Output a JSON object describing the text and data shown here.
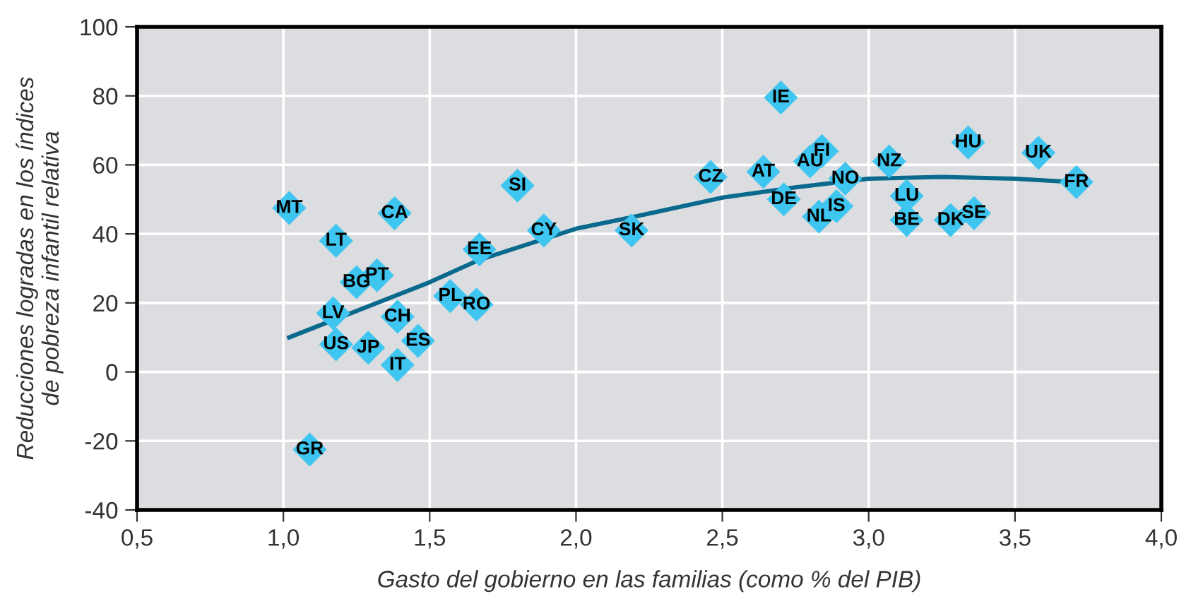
{
  "chart_data": {
    "type": "scatter",
    "xlabel": "Gasto del gobierno en las familias (como % del PIB)",
    "ylabel": "Reducciones logradas en los índices\nde pobreza infantil relativa",
    "series": [
      {
        "color": "#3fc6f0",
        "marker": "diamond",
        "x": [
          1.02,
          1.18,
          1.38,
          1.25,
          1.32,
          1.17,
          1.18,
          1.29,
          1.39,
          1.46,
          1.39,
          1.09,
          1.8,
          1.67,
          1.89,
          2.19,
          1.57,
          1.66,
          2.7,
          2.46,
          2.64,
          2.8,
          2.84,
          2.71,
          2.92,
          2.83,
          2.89,
          3.07,
          3.13,
          3.13,
          3.28,
          3.36,
          3.34,
          3.58,
          3.71
        ],
        "values": [
          47.5,
          38,
          46,
          26,
          28,
          17,
          8,
          7,
          16,
          9,
          2,
          -22.5,
          54,
          35.5,
          41,
          41,
          22,
          19.5,
          79.5,
          56.5,
          58,
          61,
          64,
          50,
          56,
          45,
          48,
          61,
          51,
          44,
          44,
          46,
          66.5,
          63.5,
          55
        ]
      },
      {
        "type": "line",
        "color": "#0a6a8e",
        "x": [
          1.02,
          1.2,
          1.5,
          1.67,
          2.0,
          2.2,
          2.5,
          2.75,
          3.0,
          3.25,
          3.5,
          3.7
        ],
        "values": [
          10,
          16,
          26,
          32.5,
          41.5,
          45,
          50.5,
          53.5,
          56,
          56.5,
          56,
          55
        ]
      }
    ],
    "annotations": [
      {
        "text": "MT",
        "x": 1.02,
        "y": 47.5
      },
      {
        "text": "LT",
        "x": 1.18,
        "y": 38
      },
      {
        "text": "CA",
        "x": 1.38,
        "y": 46
      },
      {
        "text": "BG",
        "x": 1.25,
        "y": 26
      },
      {
        "text": "PT",
        "x": 1.32,
        "y": 28
      },
      {
        "text": "LV",
        "x": 1.17,
        "y": 17
      },
      {
        "text": "US",
        "x": 1.18,
        "y": 8
      },
      {
        "text": "JP",
        "x": 1.29,
        "y": 7
      },
      {
        "text": "CH",
        "x": 1.39,
        "y": 16
      },
      {
        "text": "ES",
        "x": 1.46,
        "y": 9
      },
      {
        "text": "IT",
        "x": 1.39,
        "y": 2
      },
      {
        "text": "GR",
        "x": 1.09,
        "y": -22.5
      },
      {
        "text": "SI",
        "x": 1.8,
        "y": 54
      },
      {
        "text": "EE",
        "x": 1.67,
        "y": 35.5
      },
      {
        "text": "CY",
        "x": 1.89,
        "y": 41
      },
      {
        "text": "SK",
        "x": 2.19,
        "y": 41
      },
      {
        "text": "PL",
        "x": 1.57,
        "y": 22
      },
      {
        "text": "RO",
        "x": 1.66,
        "y": 19.5
      },
      {
        "text": "IE",
        "x": 2.7,
        "y": 79.5
      },
      {
        "text": "CZ",
        "x": 2.46,
        "y": 56.5
      },
      {
        "text": "AT",
        "x": 2.64,
        "y": 58
      },
      {
        "text": "AU",
        "x": 2.8,
        "y": 61
      },
      {
        "text": "FI",
        "x": 2.84,
        "y": 64
      },
      {
        "text": "DE",
        "x": 2.71,
        "y": 50
      },
      {
        "text": "NO",
        "x": 2.92,
        "y": 56
      },
      {
        "text": "NL",
        "x": 2.83,
        "y": 45
      },
      {
        "text": "IS",
        "x": 2.89,
        "y": 48
      },
      {
        "text": "NZ",
        "x": 3.07,
        "y": 61
      },
      {
        "text": "LU",
        "x": 3.13,
        "y": 51
      },
      {
        "text": "BE",
        "x": 3.13,
        "y": 44
      },
      {
        "text": "DK",
        "x": 3.28,
        "y": 44
      },
      {
        "text": "SE",
        "x": 3.36,
        "y": 46
      },
      {
        "text": "HU",
        "x": 3.34,
        "y": 66.5
      },
      {
        "text": "UK",
        "x": 3.58,
        "y": 63.5
      },
      {
        "text": "FR",
        "x": 3.71,
        "y": 55
      }
    ],
    "xlim": [
      0.5,
      4.0
    ],
    "xticks": [
      {
        "value": 0.5,
        "label": "0,5"
      },
      {
        "value": 1.0,
        "label": "1,0"
      },
      {
        "value": 1.5,
        "label": "1,5"
      },
      {
        "value": 2.0,
        "label": "2,0"
      },
      {
        "value": 2.5,
        "label": "2,5"
      },
      {
        "value": 3.0,
        "label": "3,0"
      },
      {
        "value": 3.5,
        "label": "3,5"
      },
      {
        "value": 4.0,
        "label": "4,0"
      }
    ],
    "ylim": [
      -40,
      100
    ],
    "yticks": [
      -40,
      -20,
      0,
      20,
      40,
      60,
      80,
      100
    ],
    "grid": true,
    "legend": false
  }
}
